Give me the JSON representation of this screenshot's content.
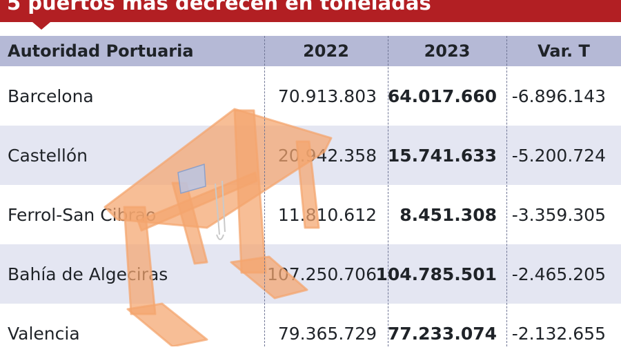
{
  "chart_data": {
    "type": "table",
    "title": "5 puertos más decrecen en toneladas",
    "columns": [
      "Autoridad Portuaria",
      "2022",
      "2023",
      "Var. T"
    ],
    "rows": [
      {
        "name": "Barcelona",
        "y2022": "70.913.803",
        "y2023": "64.017.660",
        "var": "-6.896.143"
      },
      {
        "name": "Castellón",
        "y2022": "20.942.358",
        "y2023": "15.741.633",
        "var": "-5.200.724"
      },
      {
        "name": "Ferrol-San Cibrao",
        "y2022": "11.810.612",
        "y2023": "8.451.308",
        "var": "-3.359.305"
      },
      {
        "name": "Bahía de Algeciras",
        "y2022": "107.250.706",
        "y2023": "104.785.501",
        "var": "-2.465.205"
      },
      {
        "name": "Valencia",
        "y2022": "79.365.729",
        "y2023": "77.233.074",
        "var": "-2.132.655"
      }
    ]
  },
  "colors": {
    "banner": "#b21f23",
    "header_bg": "#b5b9d6",
    "shaded_row": "#e4e6f2",
    "crane": "#f4a56e"
  },
  "decoration": {
    "background_icon": "gantry-crane-icon"
  }
}
